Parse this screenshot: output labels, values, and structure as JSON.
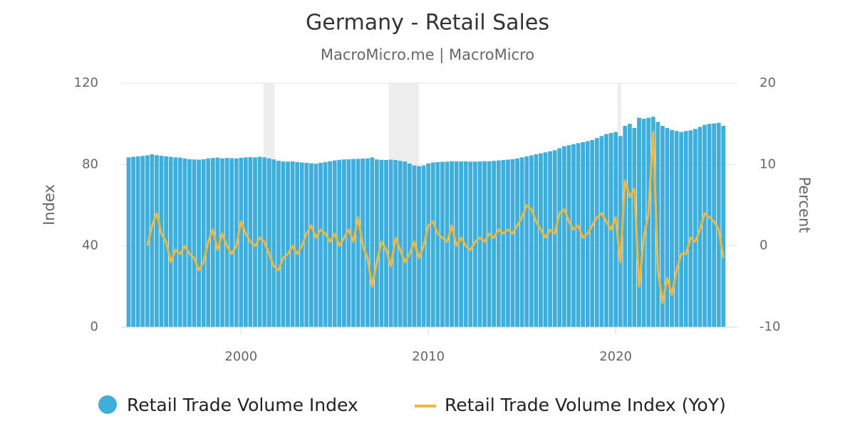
{
  "chart_data": {
    "type": "bar_line",
    "title": "Germany - Retail Sales",
    "subtitle": "MacroMicro.me | MacroMicro",
    "y_label": "Index",
    "y2_label": "Percent",
    "xlim": [
      1993.6,
      2026.5
    ],
    "xticks": [
      2000,
      2010,
      2020
    ],
    "ylim": [
      0,
      120
    ],
    "yticks": [
      0,
      40,
      80,
      120
    ],
    "y2lim": [
      -10,
      20
    ],
    "y2ticks": [
      -10,
      0,
      10,
      20
    ],
    "grid": true,
    "shaded": [
      [
        2001.2,
        2001.8
      ],
      [
        2007.9,
        2009.5
      ],
      [
        2020.1,
        2020.3
      ]
    ],
    "x": [
      1994,
      1994.25,
      1994.5,
      1994.75,
      1995,
      1995.25,
      1995.5,
      1995.75,
      1996,
      1996.25,
      1996.5,
      1996.75,
      1997,
      1997.25,
      1997.5,
      1997.75,
      1998,
      1998.25,
      1998.5,
      1998.75,
      1999,
      1999.25,
      1999.5,
      1999.75,
      2000,
      2000.25,
      2000.5,
      2000.75,
      2001,
      2001.25,
      2001.5,
      2001.75,
      2002,
      2002.25,
      2002.5,
      2002.75,
      2003,
      2003.25,
      2003.5,
      2003.75,
      2004,
      2004.25,
      2004.5,
      2004.75,
      2005,
      2005.25,
      2005.5,
      2005.75,
      2006,
      2006.25,
      2006.5,
      2006.75,
      2007,
      2007.25,
      2007.5,
      2007.75,
      2008,
      2008.25,
      2008.5,
      2008.75,
      2009,
      2009.25,
      2009.5,
      2009.75,
      2010,
      2010.25,
      2010.5,
      2010.75,
      2011,
      2011.25,
      2011.5,
      2011.75,
      2012,
      2012.25,
      2012.5,
      2012.75,
      2013,
      2013.25,
      2013.5,
      2013.75,
      2014,
      2014.25,
      2014.5,
      2014.75,
      2015,
      2015.25,
      2015.5,
      2015.75,
      2016,
      2016.25,
      2016.5,
      2016.75,
      2017,
      2017.25,
      2017.5,
      2017.75,
      2018,
      2018.25,
      2018.5,
      2018.75,
      2019,
      2019.25,
      2019.5,
      2019.75,
      2020,
      2020.25,
      2020.5,
      2020.75,
      2021,
      2021.25,
      2021.5,
      2021.75,
      2022,
      2022.25,
      2022.5,
      2022.75,
      2023,
      2023.25,
      2023.5,
      2023.75,
      2024,
      2024.25,
      2024.5,
      2024.75,
      2025,
      2025.25,
      2025.5,
      2025.75
    ],
    "series": [
      {
        "name": "Retail Trade Volume Index",
        "color": "#3eaedb",
        "kind": "bar",
        "values": [
          83.5,
          83.8,
          84,
          84.2,
          84.5,
          85,
          84.6,
          84.3,
          84,
          83.8,
          83.5,
          83.4,
          83,
          82.6,
          82.5,
          82.4,
          82.6,
          83,
          83.2,
          83.4,
          83,
          83.2,
          83.1,
          83,
          83.3,
          83.5,
          83.6,
          83.5,
          83.8,
          83.5,
          83,
          82.5,
          81.8,
          81.5,
          81.4,
          81.5,
          81.2,
          81,
          80.8,
          80.6,
          80.4,
          80.8,
          81.2,
          81.6,
          82,
          82.3,
          82.5,
          82.6,
          82.7,
          82.8,
          82.9,
          83,
          83.5,
          82.5,
          82.3,
          82.2,
          82.4,
          82.2,
          81.8,
          81.5,
          80.5,
          79.5,
          79.2,
          79.5,
          80.5,
          81,
          81.2,
          81.3,
          81.4,
          81.6,
          81.5,
          81.5,
          81.5,
          81.4,
          81.4,
          81.5,
          81.6,
          81.6,
          81.8,
          82,
          82.2,
          82.4,
          82.6,
          83,
          83.5,
          84,
          84.5,
          85,
          85.5,
          86,
          86.5,
          87,
          88,
          89,
          89.5,
          90,
          90.5,
          91,
          91.5,
          92,
          93,
          94,
          95,
          95.5,
          96,
          94,
          99,
          100,
          98,
          103,
          102.5,
          103,
          103.5,
          101,
          99,
          98,
          97,
          96.5,
          96,
          96.5,
          96.8,
          97.5,
          98.5,
          99.5,
          100,
          100.2,
          100.5,
          99
        ]
      },
      {
        "name": "Retail Trade Volume Index (YoY)",
        "color": "#f5b73b",
        "kind": "line",
        "axis": "y2",
        "values": [
          null,
          null,
          null,
          null,
          0,
          2.5,
          4,
          1.5,
          0.5,
          -2,
          -0.5,
          -1,
          0,
          -1,
          -1.5,
          -3,
          -2,
          0.5,
          2,
          -0.5,
          1.5,
          0,
          -1,
          0,
          3,
          1.5,
          0.5,
          0,
          1,
          0.5,
          -1,
          -2.5,
          -3,
          -1.5,
          -1,
          0,
          -1,
          0,
          1.5,
          2.5,
          1,
          2,
          1.5,
          0.5,
          1.5,
          0,
          1,
          2,
          0.5,
          3.5,
          0,
          -1.5,
          -5,
          -2,
          0.5,
          -0.5,
          -2.5,
          1,
          -0.5,
          -2,
          -1,
          0.5,
          -1.5,
          0,
          2.5,
          3,
          1.5,
          1,
          0.5,
          2.5,
          0,
          1,
          0,
          -0.5,
          0.5,
          1,
          0.5,
          1.5,
          1,
          2,
          1.5,
          2,
          1.5,
          2.5,
          3.5,
          5,
          4.5,
          3,
          2,
          1,
          2,
          1.5,
          4,
          4.5,
          3,
          2,
          2.5,
          1,
          1.5,
          2.5,
          3.5,
          4,
          3,
          2,
          3.5,
          -2,
          8,
          6,
          7,
          -5,
          1,
          4,
          14,
          -3,
          -7,
          -4,
          -6,
          -3,
          -1,
          -1,
          1,
          0.5,
          2,
          4,
          3.5,
          3,
          2,
          -1.5
        ]
      }
    ]
  }
}
